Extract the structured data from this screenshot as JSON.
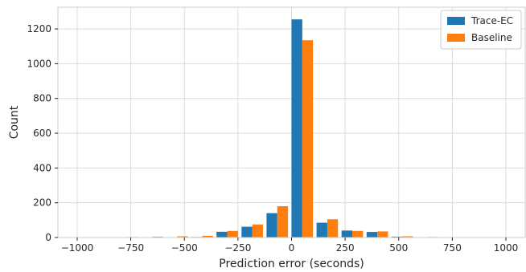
{
  "chart_data": {
    "type": "bar",
    "title": "",
    "xlabel": "Prediction error (seconds)",
    "ylabel": "Count",
    "xlim": [
      -1090,
      1090
    ],
    "ylim": [
      0,
      1325
    ],
    "grid": true,
    "legend_position": "top-right",
    "x_ticks": [
      -1000,
      -750,
      -500,
      -250,
      0,
      250,
      500,
      750,
      1000
    ],
    "x_tick_labels": [
      "−1000",
      "−750",
      "−500",
      "−250",
      "0",
      "250",
      "500",
      "750",
      "1000"
    ],
    "y_ticks": [
      0,
      200,
      400,
      600,
      800,
      1000,
      1200
    ],
    "y_tick_labels": [
      "0",
      "200",
      "400",
      "600",
      "800",
      "1000",
      "1200"
    ],
    "bin_centers": [
      -1000,
      -883.3,
      -766.7,
      -650,
      -533.3,
      -416.7,
      -300,
      -183.3,
      -66.7,
      50,
      166.7,
      283.3,
      400,
      516.7,
      633.3,
      750,
      866.7,
      983.3
    ],
    "bar_width": 50,
    "series": [
      {
        "name": "Trace-EC",
        "color": "#1f77b4",
        "values": [
          1,
          1,
          1,
          1,
          2,
          3,
          33,
          62,
          140,
          1255,
          85,
          40,
          32,
          5,
          2,
          1,
          1,
          1
        ]
      },
      {
        "name": "Baseline",
        "color": "#ff7f0e",
        "values": [
          1,
          2,
          3,
          5,
          7,
          10,
          38,
          75,
          180,
          1135,
          105,
          38,
          35,
          7,
          3,
          2,
          2,
          1
        ]
      }
    ]
  }
}
